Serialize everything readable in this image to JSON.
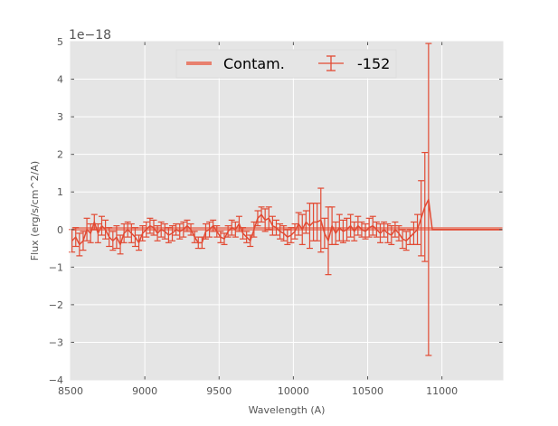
{
  "chart_data": {
    "type": "line",
    "xlabel": "Wavelength (A)",
    "ylabel": "Flux (erg/s/cm^2/A)",
    "offset_label": "1e−18",
    "xlim": [
      8500,
      11410
    ],
    "ylim": [
      -4,
      5
    ],
    "grid": true,
    "legend_placement": "top-center",
    "xticks": [
      8500,
      9000,
      9500,
      10000,
      10500,
      11000
    ],
    "xtick_labels": [
      "8500",
      "9000",
      "9500",
      "10000",
      "10500",
      "11000"
    ],
    "yticks": [
      -4,
      -3,
      -2,
      -1,
      0,
      1,
      2,
      3,
      4,
      5
    ],
    "ytick_labels": [
      "−4",
      "−3",
      "−2",
      "−1",
      "0",
      "1",
      "2",
      "3",
      "4",
      "5"
    ],
    "series": [
      {
        "name": "Contam.",
        "color": "#E8806E",
        "x": [
          8510,
          11410
        ],
        "values": [
          0.02,
          0.02
        ]
      },
      {
        "name": "-152",
        "color": "#E24A33",
        "x_start": 8510,
        "x_step": 25,
        "values": [
          -0.3,
          -0.2,
          -0.4,
          -0.3,
          0.0,
          -0.1,
          0.2,
          -0.1,
          0.1,
          0.0,
          -0.2,
          -0.3,
          -0.2,
          -0.4,
          -0.1,
          0.0,
          -0.1,
          -0.2,
          -0.35,
          -0.1,
          0.0,
          0.1,
          0.05,
          -0.1,
          0.0,
          -0.05,
          -0.15,
          -0.1,
          0.0,
          -0.05,
          0.0,
          0.1,
          0.0,
          -0.2,
          -0.35,
          -0.35,
          -0.05,
          0.0,
          0.1,
          -0.05,
          -0.2,
          -0.25,
          -0.05,
          0.05,
          0.0,
          0.15,
          -0.1,
          -0.2,
          -0.3,
          0.0,
          0.3,
          0.4,
          0.25,
          0.3,
          0.1,
          0.05,
          -0.05,
          -0.1,
          -0.2,
          -0.15,
          -0.05,
          0.15,
          0.0,
          0.2,
          0.1,
          0.2,
          0.2,
          0.25,
          -0.1,
          -0.3,
          0.1,
          -0.1,
          0.05,
          -0.05,
          0.0,
          0.1,
          -0.05,
          0.1,
          0.0,
          -0.05,
          0.05,
          0.1,
          0.0,
          -0.1,
          0.0,
          -0.1,
          -0.15,
          0.0,
          -0.1,
          -0.25,
          -0.3,
          -0.2,
          -0.1,
          0.0,
          0.3,
          0.6,
          0.8
        ],
        "errors": [
          0.3,
          0.25,
          0.3,
          0.25,
          0.3,
          0.25,
          0.2,
          0.25,
          0.25,
          0.25,
          0.25,
          0.25,
          0.3,
          0.25,
          0.25,
          0.2,
          0.25,
          0.25,
          0.2,
          0.2,
          0.2,
          0.2,
          0.2,
          0.2,
          0.2,
          0.2,
          0.2,
          0.2,
          0.15,
          0.2,
          0.2,
          0.15,
          0.15,
          0.15,
          0.15,
          0.15,
          0.2,
          0.2,
          0.15,
          0.15,
          0.15,
          0.15,
          0.15,
          0.2,
          0.2,
          0.2,
          0.15,
          0.15,
          0.15,
          0.2,
          0.2,
          0.2,
          0.3,
          0.3,
          0.25,
          0.2,
          0.2,
          0.2,
          0.2,
          0.2,
          0.2,
          0.3,
          0.4,
          0.3,
          0.6,
          0.5,
          0.5,
          0.85,
          0.4,
          0.9,
          0.5,
          0.3,
          0.35,
          0.3,
          0.3,
          0.3,
          0.25,
          0.25,
          0.2,
          0.2,
          0.25,
          0.25,
          0.2,
          0.25,
          0.2,
          0.25,
          0.25,
          0.2,
          0.2,
          0.25,
          0.25,
          0.2,
          0.3,
          0.4,
          1.0,
          1.45,
          4.15
        ],
        "tail": {
          "x": [
            10935,
            11410
          ],
          "values": [
            0.0,
            0.0
          ]
        }
      }
    ]
  }
}
